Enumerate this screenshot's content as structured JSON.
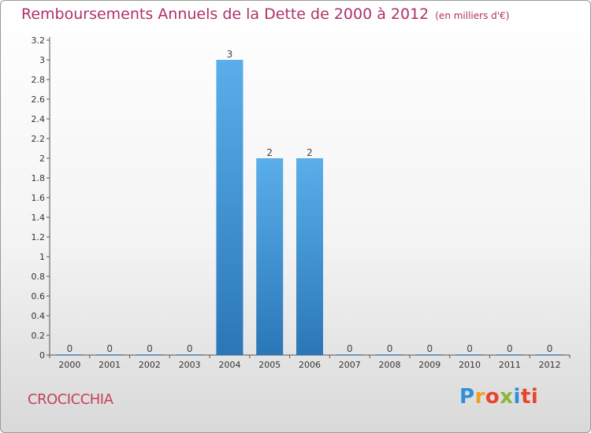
{
  "chart_data": {
    "type": "bar",
    "title": "Remboursements Annuels de la Dette de 2000 à 2012",
    "unit_note": "(en milliers d'€)",
    "categories": [
      "2000",
      "2001",
      "2002",
      "2003",
      "2004",
      "2005",
      "2006",
      "2007",
      "2008",
      "2009",
      "2010",
      "2011",
      "2012"
    ],
    "values": [
      0,
      0,
      0,
      0,
      3,
      2,
      2,
      0,
      0,
      0,
      0,
      0,
      0
    ],
    "value_labels": [
      "0",
      "0",
      "0",
      "0",
      "3",
      "2",
      "2",
      "0",
      "0",
      "0",
      "0",
      "0",
      "0"
    ],
    "ylim": [
      0,
      3.2
    ],
    "yticks": [
      "0",
      "0.2",
      "0.4",
      "0.6",
      "0.8",
      "1",
      "1.2",
      "1.4",
      "1.6",
      "1.8",
      "2",
      "2.2",
      "2.4",
      "2.6",
      "2.8",
      "3",
      "3.2"
    ],
    "xlabel": "",
    "ylabel": "",
    "bar_color": "#3d95d8",
    "grid": false
  },
  "commune": "CROCICCHIA",
  "logo": [
    "P",
    "r",
    "o",
    "x",
    "i",
    "ti"
  ]
}
